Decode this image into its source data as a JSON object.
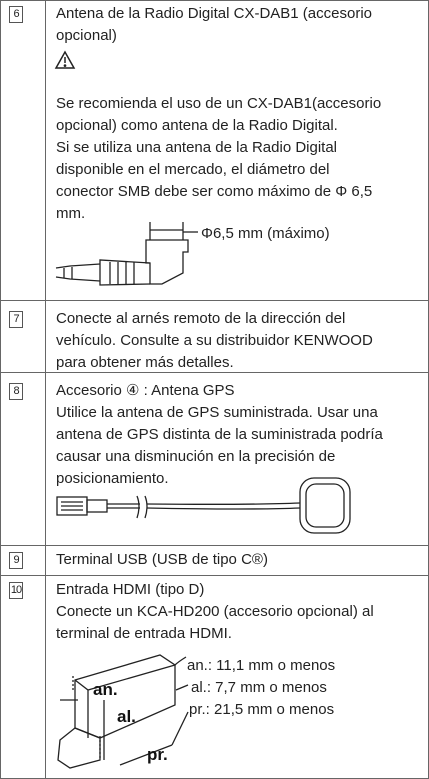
{
  "rows": [
    {
      "number": "6",
      "title_lines": [
        "Antena de la Radio Digital CX-DAB1 (accesorio",
        "opcional)"
      ],
      "body_lines": [
        "Se recomienda el uso de un CX-DAB1(accesorio",
        "opcional) como antena de la Radio Digital.",
        "Si se utiliza una antena de la Radio Digital",
        "disponible en el mercado, el diámetro del",
        "conector SMB debe ser como máximo de Φ 6,5",
        "mm."
      ],
      "figure_label": "Φ6,5 mm (máximo)"
    },
    {
      "number": "7",
      "body_lines": [
        "Conecte al arnés remoto de la dirección del",
        "vehículo. Consulte a su distribuidor KENWOOD",
        "para obtener más detalles."
      ]
    },
    {
      "number": "8",
      "body_lines": [
        "Accesorio ④ : Antena GPS",
        "Utilice la antena de GPS suministrada. Usar una",
        "antena de GPS distinta de la suministrada podría",
        "causar una disminución en la precisión de",
        "posicionamiento."
      ]
    },
    {
      "number": "9",
      "body_lines": [
        "Terminal USB (USB de tipo C®)"
      ]
    },
    {
      "number": "10",
      "body_lines": [
        "Entrada HDMI (tipo D)",
        "Conecte un KCA-HD200 (accesorio opcional) al",
        "terminal de entrada HDMI."
      ],
      "figure_labels": [
        "an.: 11,1 mm o menos",
        "al.: 7,7 mm o menos",
        "pr.: 21,5 mm o menos"
      ],
      "figure_marks": [
        "an.",
        "al.",
        "pr."
      ]
    }
  ]
}
